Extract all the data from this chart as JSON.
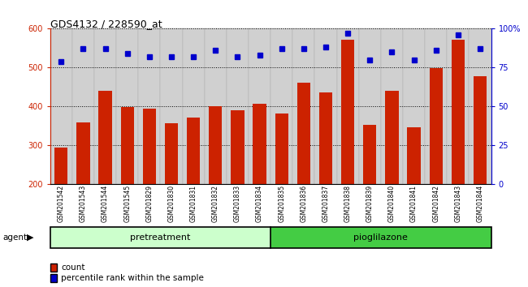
{
  "title": "GDS4132 / 228590_at",
  "categories": [
    "GSM201542",
    "GSM201543",
    "GSM201544",
    "GSM201545",
    "GSM201829",
    "GSM201830",
    "GSM201831",
    "GSM201832",
    "GSM201833",
    "GSM201834",
    "GSM201835",
    "GSM201836",
    "GSM201837",
    "GSM201838",
    "GSM201839",
    "GSM201840",
    "GSM201841",
    "GSM201842",
    "GSM201843",
    "GSM201844"
  ],
  "bar_values": [
    293,
    358,
    440,
    397,
    393,
    355,
    371,
    401,
    390,
    406,
    382,
    460,
    435,
    572,
    352,
    439,
    345,
    499,
    571,
    477
  ],
  "percentile_values": [
    79,
    87,
    87,
    84,
    82,
    82,
    82,
    86,
    82,
    83,
    87,
    87,
    88,
    97,
    80,
    85,
    80,
    86,
    96,
    87
  ],
  "bar_color": "#cc2200",
  "dot_color": "#0000cc",
  "ylim_left": [
    200,
    600
  ],
  "ylim_right": [
    0,
    100
  ],
  "yticks_left": [
    200,
    300,
    400,
    500,
    600
  ],
  "yticks_right": [
    0,
    25,
    50,
    75,
    100
  ],
  "group1_count": 10,
  "group2_count": 10,
  "group1_label": "pretreatment",
  "group2_label": "pioglilazone",
  "agent_label": "agent",
  "legend_count_label": "count",
  "legend_pct_label": "percentile rank within the sample",
  "bg_color_plot": "#ffffff",
  "xtick_bg": "#d0d0d0",
  "group1_bg": "#ccffcc",
  "group2_bg": "#44cc44",
  "bar_width": 0.6
}
